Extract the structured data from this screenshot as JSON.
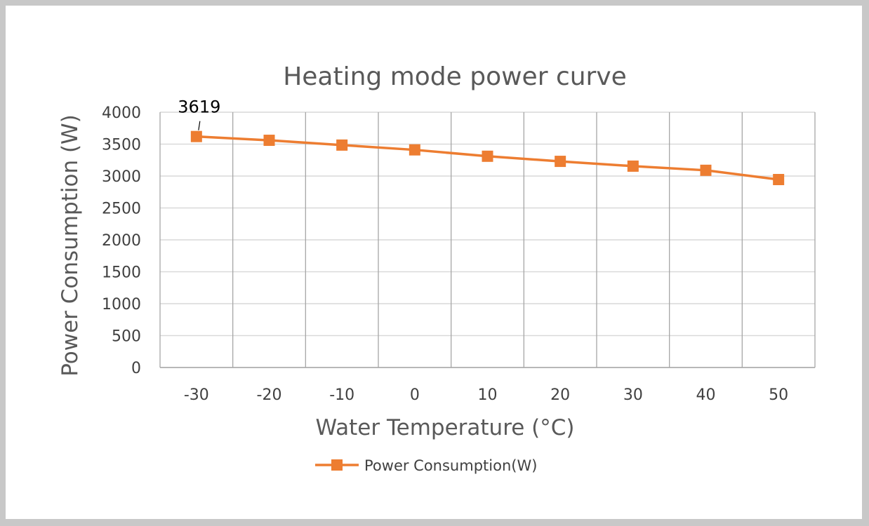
{
  "chart_data": {
    "type": "line",
    "title": "Heating mode power curve",
    "xlabel": "Water Temperature (°C)",
    "ylabel": "Power Consumption  (W)",
    "categories": [
      "-30",
      "-20",
      "-10",
      "0",
      "10",
      "20",
      "30",
      "40",
      "50"
    ],
    "series": [
      {
        "name": "Power Consumption(W)",
        "values": [
          3619,
          3560,
          3485,
          3410,
          3310,
          3230,
          3155,
          3090,
          2945
        ],
        "color": "#ED7D31"
      }
    ],
    "ylim": [
      0,
      4000
    ],
    "yticks": [
      "0",
      "500",
      "1000",
      "1500",
      "2000",
      "2500",
      "3000",
      "3500",
      "4000"
    ],
    "grid": true,
    "legend": "bottom",
    "annotations": [
      {
        "text": "3619",
        "category": "-30"
      }
    ]
  }
}
